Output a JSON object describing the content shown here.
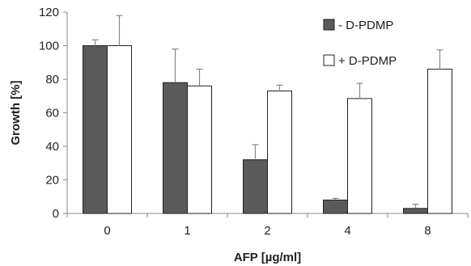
{
  "chart_data": {
    "type": "bar",
    "title": "",
    "xlabel": "AFP [µg/ml]",
    "ylabel": "Growth [%]",
    "ylim": [
      0,
      120
    ],
    "yticks": [
      "0",
      "20",
      "40",
      "60",
      "80",
      "100",
      "120"
    ],
    "categories": [
      "0",
      "1",
      "2",
      "4",
      "8"
    ],
    "grid": false,
    "legend_position": "top-right",
    "series": [
      {
        "name": "- D-PDMP",
        "color": "#5a5a5a",
        "values": [
          100,
          78,
          32,
          8,
          3
        ],
        "errors": [
          3.5,
          20,
          9,
          1,
          2.5
        ]
      },
      {
        "name": "+ D-PDMP",
        "color": "#ffffff",
        "values": [
          100,
          76,
          73,
          68.5,
          86
        ],
        "errors": [
          18,
          10,
          3.5,
          9,
          11.5
        ]
      }
    ]
  }
}
